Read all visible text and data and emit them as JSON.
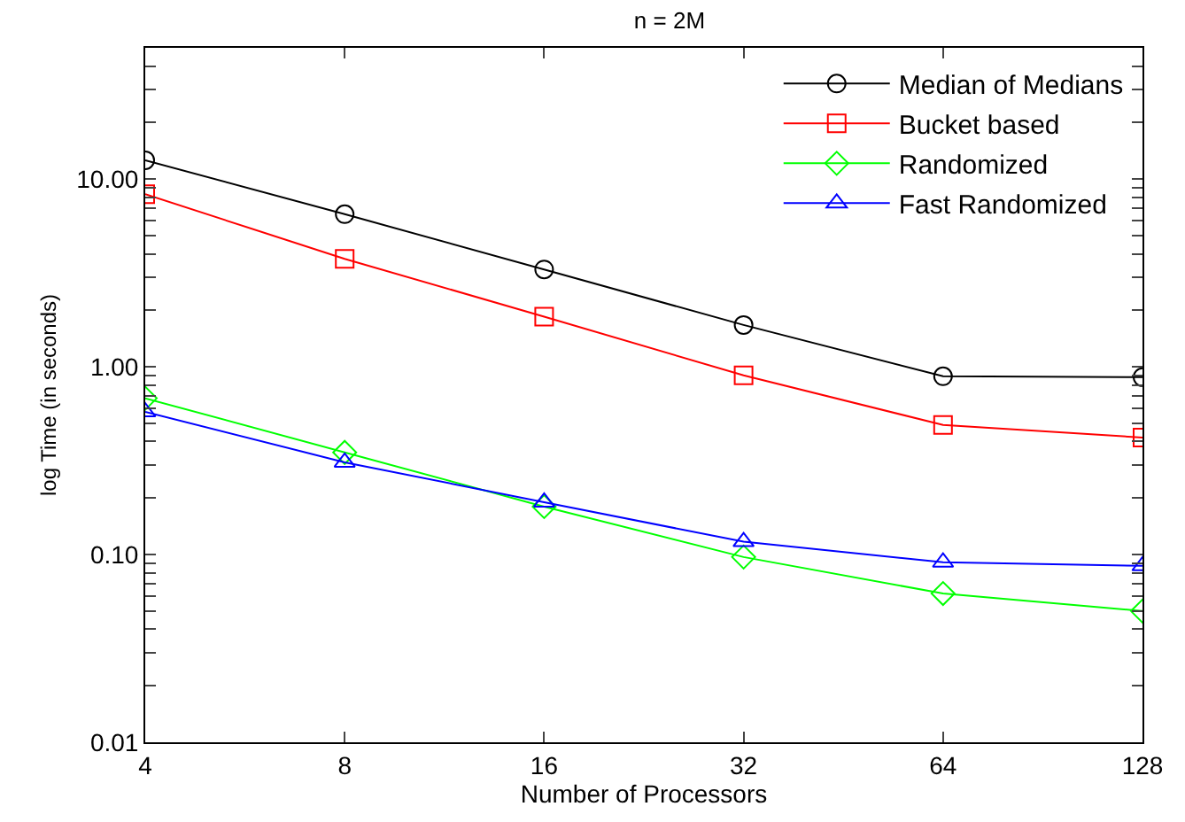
{
  "chart_data": {
    "type": "line",
    "title": "n = 2M",
    "xlabel": "Number of Processors",
    "ylabel": "log Time (in seconds)",
    "x": [
      4,
      8,
      16,
      32,
      64,
      128
    ],
    "series": [
      {
        "name": "Median of Medians",
        "color": "#000000",
        "marker": "circle",
        "values": [
          12.6,
          6.5,
          3.3,
          1.67,
          0.89,
          0.88
        ]
      },
      {
        "name": "Bucket based",
        "color": "#ff0000",
        "marker": "square",
        "values": [
          8.3,
          3.76,
          1.85,
          0.9,
          0.49,
          0.42
        ]
      },
      {
        "name": "Randomized",
        "color": "#00ff00",
        "marker": "diamond",
        "values": [
          0.68,
          0.35,
          0.18,
          0.097,
          0.062,
          0.05
        ]
      },
      {
        "name": "Fast Randomized",
        "color": "#0000ff",
        "marker": "triangle",
        "values": [
          0.575,
          0.31,
          0.19,
          0.117,
          0.091,
          0.087
        ]
      }
    ],
    "log": "xy",
    "xlim": [
      4,
      128
    ],
    "ylim": [
      0.01,
      50
    ],
    "xticks": [
      4,
      8,
      16,
      32,
      64,
      128
    ],
    "yticks": [
      {
        "value": 0.01,
        "label": "0.01"
      },
      {
        "value": 0.02,
        "label": null
      },
      {
        "value": 0.03,
        "label": null
      },
      {
        "value": 0.04,
        "label": null
      },
      {
        "value": 0.05,
        "label": null
      },
      {
        "value": 0.06,
        "label": null
      },
      {
        "value": 0.07,
        "label": null
      },
      {
        "value": 0.08,
        "label": null
      },
      {
        "value": 0.09,
        "label": null
      },
      {
        "value": 0.1,
        "label": "0.10"
      },
      {
        "value": 0.2,
        "label": null
      },
      {
        "value": 0.3,
        "label": null
      },
      {
        "value": 0.4,
        "label": null
      },
      {
        "value": 0.5,
        "label": null
      },
      {
        "value": 0.6,
        "label": null
      },
      {
        "value": 0.7,
        "label": null
      },
      {
        "value": 0.8,
        "label": null
      },
      {
        "value": 0.9,
        "label": null
      },
      {
        "value": 1,
        "label": "1.00"
      },
      {
        "value": 2,
        "label": null
      },
      {
        "value": 3,
        "label": null
      },
      {
        "value": 4,
        "label": null
      },
      {
        "value": 5,
        "label": null
      },
      {
        "value": 6,
        "label": null
      },
      {
        "value": 7,
        "label": null
      },
      {
        "value": 8,
        "label": null
      },
      {
        "value": 9,
        "label": null
      },
      {
        "value": 10,
        "label": "10.00"
      },
      {
        "value": 20,
        "label": null
      },
      {
        "value": 30,
        "label": null
      },
      {
        "value": 40,
        "label": null
      },
      {
        "value": 50,
        "label": null
      }
    ],
    "legend": "top right",
    "line_style": "solid"
  }
}
